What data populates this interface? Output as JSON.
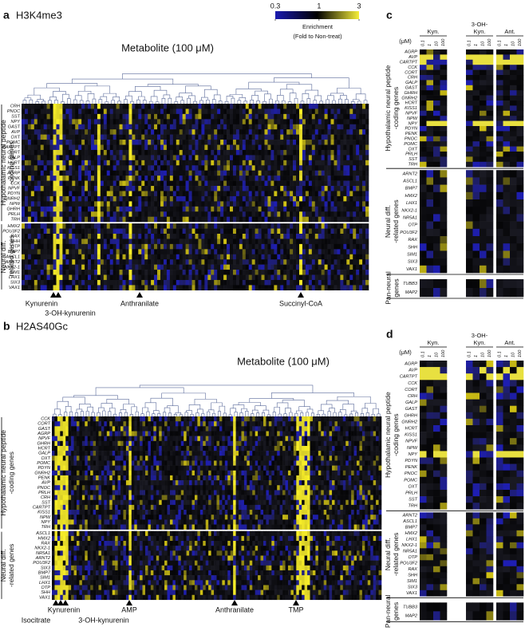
{
  "panels": [
    {
      "label": "a",
      "title": "H3K4me3",
      "axis_title": "Metabolite (100 μM)",
      "groups": [
        {
          "label": [
            "Hypothalamic neural peptide",
            "-coding genes"
          ],
          "genes": [
            "CRH",
            "PNOC",
            "SST",
            "NPY",
            "GAST",
            "AVP",
            "OXT",
            "POMC",
            "CARTPT",
            "CORT",
            "GALP",
            "HCRT",
            "KISS1",
            "AGRP",
            "PENK",
            "CCK",
            "NPVF",
            "PDYN",
            "GNRH2",
            "NPW",
            "GHRH",
            "PRLH",
            "TRH"
          ]
        },
        {
          "label": [
            "Neural diff.",
            "-related genes"
          ],
          "genes": [
            "HMX2",
            "POU3F2",
            "RAX",
            "SHH",
            "OTP",
            "BMP7",
            "ASCL1",
            "ARNT2",
            "NKX2-1",
            "SIM1",
            "LHX1",
            "SIX3",
            "VAX1"
          ]
        }
      ],
      "markers": [
        "Kynurenin",
        "3-OH-kynurenin",
        "Anthranilate",
        "Succinyl-CoA"
      ]
    },
    {
      "label": "b",
      "title": "H2AS40Gc",
      "axis_title": "Metabolite (100 μM)",
      "groups": [
        {
          "label": [
            "Hypothalamic neural peptide",
            "-coding genes"
          ],
          "genes": [
            "CCK",
            "CORT",
            "GAST",
            "AGRP",
            "NPVF",
            "GHRH",
            "HCRT",
            "GALP",
            "OXT",
            "POMC",
            "PDYN",
            "GNRH2",
            "PENK",
            "AVP",
            "PNOC",
            "PRLH",
            "CRH",
            "SST",
            "CARTPT",
            "KISS1",
            "NPW",
            "NPY",
            "TRH"
          ]
        },
        {
          "label": [
            "Neural diff.",
            "-related genes"
          ],
          "genes": [
            "ASCL1",
            "HMX2",
            "RAX",
            "NKX2-1",
            "NR5A1",
            "ARNT2",
            "POU3F2",
            "SIX3",
            "BMP7",
            "SIM1",
            "LHX1",
            "OTP",
            "SHH",
            "VAX1"
          ]
        }
      ],
      "markers": [
        "Isocitrate",
        "Kynurenin",
        "3-OH-kynurenin",
        "AMP",
        "Anthranilate",
        "TMP"
      ]
    },
    {
      "label": "c",
      "compounds": [
        [
          "Kyn."
        ],
        [
          "3-OH-",
          "Kyn."
        ],
        [
          "Ant."
        ]
      ],
      "unit": "(μM)",
      "concentrations": [
        0.1,
        1,
        10,
        100
      ],
      "groups": [
        {
          "label": [
            "Hypothalamic neural peptide",
            "-coding genes"
          ],
          "genes": [
            "AGRP",
            "AVP",
            "CARTPT",
            "CCK",
            "CORT",
            "CRH",
            "GALP",
            "GAST",
            "GHRH",
            "GNRH2",
            "HCRT",
            "KISS1",
            "NPVF",
            "NPW",
            "NPY",
            "PDYN",
            "PENK",
            "PNOC",
            "POMC",
            "OXT",
            "PRLH",
            "SST",
            "TRH"
          ]
        },
        {
          "label": [
            "Neural diff.",
            "-related genes"
          ],
          "genes": [
            "ARNT2",
            "ASCL1",
            "BMP7",
            "HMX2",
            "LHX1",
            "NKX2-1",
            "NR5A1",
            "OTP",
            "POU3F2",
            "RAX",
            "SHH",
            "SIM1",
            "SIX3",
            "VAX1"
          ]
        },
        {
          "label": [
            "Pan-neural",
            "genes"
          ],
          "genes": [
            "TUBB3",
            "MAP2"
          ]
        }
      ]
    },
    {
      "label": "d",
      "compounds": [
        [
          "Kyn."
        ],
        [
          "3-OH-",
          "Kyn."
        ],
        [
          "Ant."
        ]
      ],
      "unit": "(μM)",
      "concentrations": [
        0.1,
        1,
        10,
        100
      ],
      "groups": [
        {
          "label": [
            "Hypothalamic neural peptide",
            "-coding genes"
          ],
          "genes": [
            "AGRP",
            "AVP",
            "CARTPT",
            "CCK",
            "CORT",
            "CRH",
            "GALP",
            "GAST",
            "GHRH",
            "GNRH2",
            "HCRT",
            "KISS1",
            "NPVF",
            "NPW",
            "NPY",
            "PDYN",
            "PENK",
            "PNOC",
            "POMC",
            "OXT",
            "PRLH",
            "SST",
            "TRH"
          ]
        },
        {
          "label": [
            "Neural diff.",
            "-related genes"
          ],
          "genes": [
            "ARNT2",
            "ASCL1",
            "BMP7",
            "HMX2",
            "LHX1",
            "NKX2-1",
            "NR5A1",
            "OTP",
            "POU3F2",
            "RAX",
            "SHH",
            "SIM1",
            "SIX3",
            "VAX1"
          ]
        },
        {
          "label": [
            "Pan-neural",
            "genes"
          ],
          "genes": [
            "TUBB3",
            "MAP2"
          ]
        }
      ]
    }
  ],
  "colorbar": {
    "label": "Enrichment",
    "sublabel": "(Fold to Non-treat)",
    "ticks": [
      0.3,
      1,
      3
    ],
    "scale": "log"
  }
}
